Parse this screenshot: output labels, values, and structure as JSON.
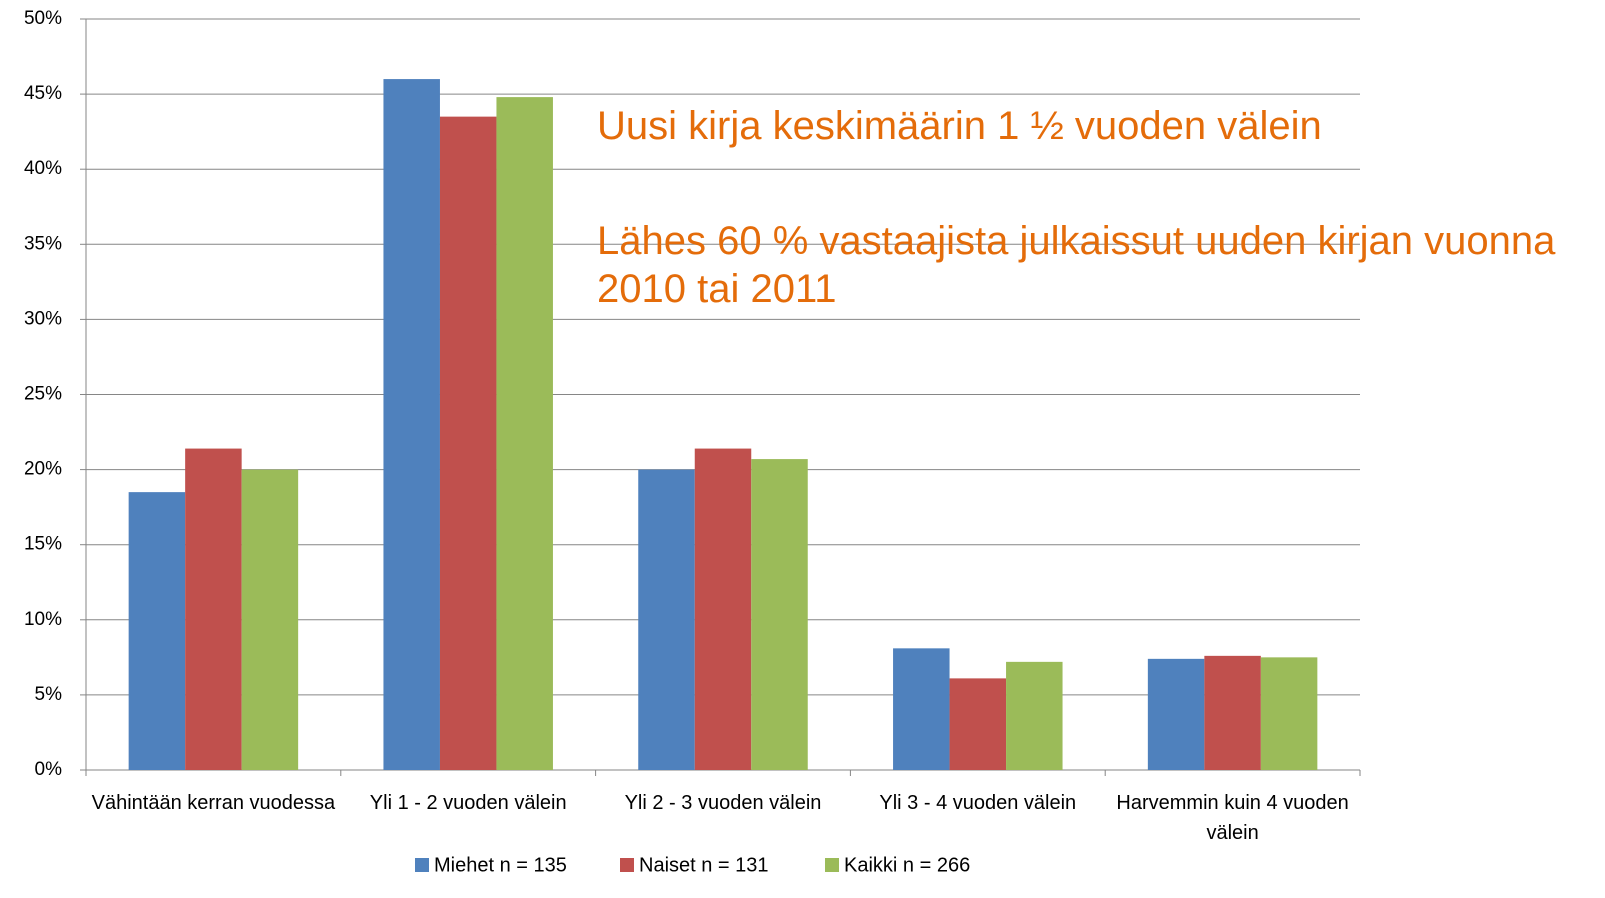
{
  "chart_data": {
    "type": "bar",
    "categories": [
      "Vähintään kerran vuodessa",
      "Yli 1 - 2 vuoden välein",
      "Yli 2 - 3 vuoden välein",
      "Yli 3 - 4 vuoden välein",
      "Harvemmin kuin 4 vuoden välein"
    ],
    "series": [
      {
        "name": "Miehet n = 135",
        "color": "#4f81bd",
        "values": [
          18.5,
          46.0,
          20.0,
          8.1,
          7.4
        ]
      },
      {
        "name": "Naiset n = 131",
        "color": "#c0504d",
        "values": [
          21.4,
          43.5,
          21.4,
          6.1,
          7.6
        ]
      },
      {
        "name": "Kaikki n = 266",
        "color": "#9bbb59",
        "values": [
          20.0,
          44.8,
          20.7,
          7.2,
          7.5
        ]
      }
    ],
    "ylim": [
      0,
      50
    ],
    "yticks": [
      {
        "value": 0,
        "label": "0%"
      },
      {
        "value": 5,
        "label": "5%"
      },
      {
        "value": 10,
        "label": "10%"
      },
      {
        "value": 15,
        "label": "15%"
      },
      {
        "value": 20,
        "label": "20%"
      },
      {
        "value": 25,
        "label": "25%"
      },
      {
        "value": 30,
        "label": "30%"
      },
      {
        "value": 35,
        "label": "35%"
      },
      {
        "value": 40,
        "label": "40%"
      },
      {
        "value": 45,
        "label": "45%"
      },
      {
        "value": 50,
        "label": "50%"
      }
    ],
    "grid": true,
    "legend": "bottom",
    "annotations": [
      "Uusi kirja keskimäärin 1 ½ vuoden välein",
      "Lähes 60 % vastaajista julkaissut uuden kirjan vuonna 2010 tai 2011"
    ],
    "annotation_color": "#e46c0a"
  }
}
